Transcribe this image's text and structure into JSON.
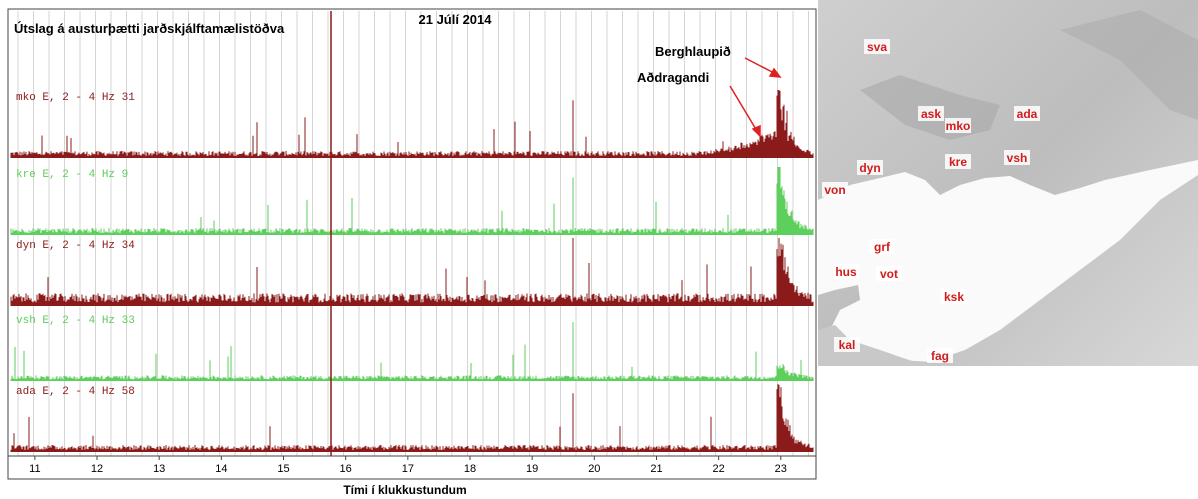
{
  "plot": {
    "title": "Útslag á austurþætti jarðskjálftamælistöðva",
    "date": "21 Júlí 2014",
    "traces": [
      {
        "label": "mko E, 2 - 4 Hz 31",
        "color": "#8b1a1a"
      },
      {
        "label": "kre E, 2 - 4 Hz 9",
        "color": "#5ccf5c"
      },
      {
        "label": "dyn E, 2 - 4 Hz 34",
        "color": "#8b1a1a"
      },
      {
        "label": "vsh E, 2 - 4 Hz 33",
        "color": "#5ccf5c"
      },
      {
        "label": "ada E, 2 - 4 Hz 58",
        "color": "#8b1a1a"
      }
    ],
    "annotations": [
      "Berghlaupið",
      "Aðdragandi"
    ],
    "xlim": [
      10.6,
      23.55
    ],
    "xticks": [
      11,
      12,
      13,
      14,
      15,
      16,
      17,
      18,
      19,
      20,
      21,
      22,
      23
    ],
    "xlabel": "Tími í klukkustundum"
  },
  "map": {
    "stations": [
      "sva",
      "ask",
      "mko",
      "ada",
      "dyn",
      "kre",
      "vsh",
      "von",
      "grf",
      "hus",
      "vot",
      "ksk",
      "kal",
      "fag"
    ]
  }
}
